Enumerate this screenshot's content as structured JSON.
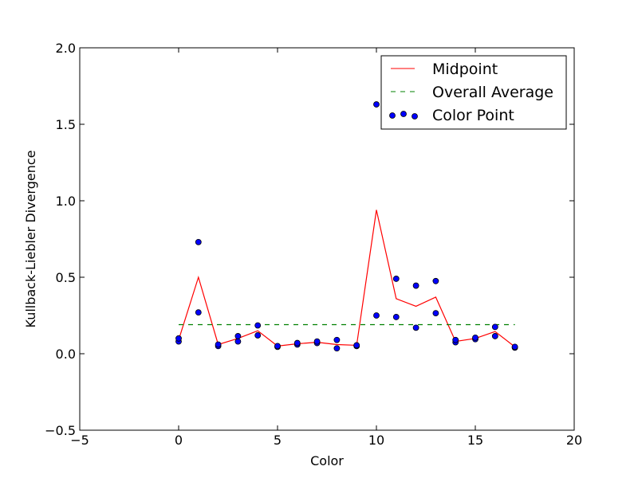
{
  "chart_data": {
    "type": "scatter",
    "xlabel": "Color",
    "ylabel": "Kullback-Liebler Divergence",
    "xlim": [
      -5,
      20
    ],
    "ylim": [
      -0.5,
      2.0
    ],
    "xticks": [
      -5,
      0,
      5,
      10,
      15,
      20
    ],
    "yticks": [
      -0.5,
      0.0,
      0.5,
      1.0,
      1.5,
      2.0
    ],
    "xtick_labels": [
      "−5",
      "0",
      "5",
      "10",
      "15",
      "20"
    ],
    "ytick_labels": [
      "−0.5",
      "0.0",
      "0.5",
      "1.0",
      "1.5",
      "2.0"
    ],
    "grid": false,
    "legend_position": "top-right",
    "series": [
      {
        "name": "Midpoint",
        "kind": "line",
        "color": "#ff0000",
        "x": [
          0,
          1,
          2,
          3,
          4,
          5,
          6,
          7,
          8,
          9,
          10,
          11,
          12,
          13,
          14,
          15,
          16,
          17
        ],
        "y": [
          0.09,
          0.5,
          0.06,
          0.1,
          0.15,
          0.05,
          0.065,
          0.075,
          0.06,
          0.055,
          0.94,
          0.36,
          0.31,
          0.37,
          0.08,
          0.1,
          0.145,
          0.045
        ]
      },
      {
        "name": "Overall Average",
        "kind": "dashed-line",
        "color": "#008000",
        "x": [
          0,
          17
        ],
        "y": [
          0.19,
          0.19
        ]
      },
      {
        "name": "Color Point",
        "kind": "scatter",
        "color": "#0000ff",
        "x": [
          0,
          0,
          1,
          1,
          2,
          2,
          3,
          3,
          4,
          4,
          5,
          5,
          6,
          6,
          7,
          7,
          8,
          8,
          9,
          9,
          10,
          10,
          11,
          11,
          12,
          12,
          13,
          13,
          14,
          14,
          15,
          15,
          16,
          16,
          17,
          17
        ],
        "y": [
          0.08,
          0.1,
          0.73,
          0.27,
          0.05,
          0.06,
          0.08,
          0.115,
          0.185,
          0.12,
          0.045,
          0.05,
          0.06,
          0.07,
          0.07,
          0.08,
          0.035,
          0.09,
          0.05,
          0.055,
          1.63,
          0.25,
          0.49,
          0.24,
          0.445,
          0.17,
          0.475,
          0.265,
          0.075,
          0.09,
          0.095,
          0.105,
          0.175,
          0.115,
          0.04,
          0.045
        ]
      }
    ]
  }
}
